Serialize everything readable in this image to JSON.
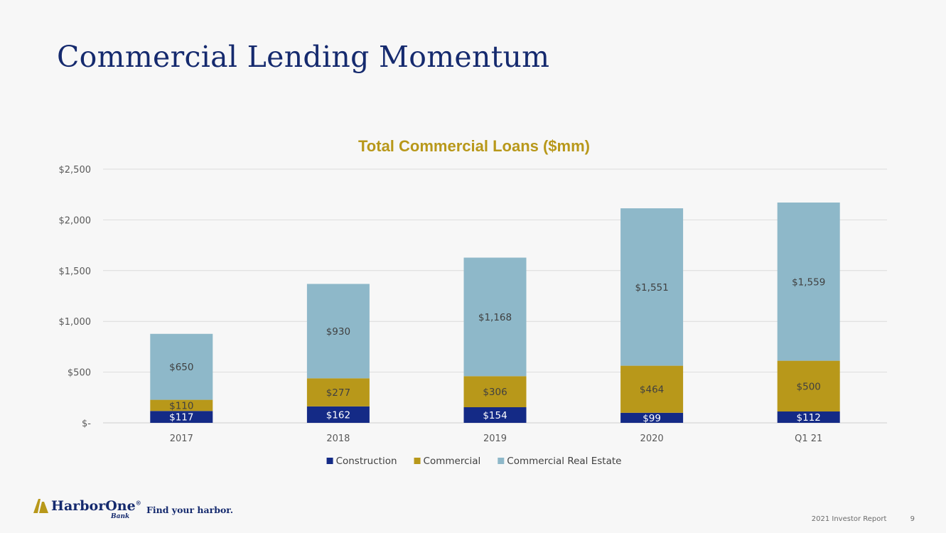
{
  "slide": {
    "title": "Commercial Lending Momentum"
  },
  "colors": {
    "construction": "#142a86",
    "commercial": "#b8981a",
    "commercial_real_estate": "#8eb8c9",
    "title_navy": "#152a6e",
    "chart_title_gold": "#b8981a"
  },
  "chart_data": {
    "type": "bar",
    "stacked": true,
    "title": "Total Commercial Loans ($mm)",
    "categories": [
      "2017",
      "2018",
      "2019",
      "2020",
      "Q1 21"
    ],
    "series": [
      {
        "name": "Construction",
        "values": [
          117,
          162,
          154,
          99,
          112
        ],
        "labels": [
          "$117",
          "$162",
          "$154",
          "$99",
          "$112"
        ]
      },
      {
        "name": "Commercial",
        "values": [
          110,
          277,
          306,
          464,
          500
        ],
        "labels": [
          "$110",
          "$277",
          "$306",
          "$464",
          "$500"
        ]
      },
      {
        "name": "Commercial Real Estate",
        "values": [
          650,
          930,
          1168,
          1551,
          1559
        ],
        "labels": [
          "$650",
          "$930",
          "$1,168",
          "$1,551",
          "$1,559"
        ]
      }
    ],
    "ylim": [
      0,
      2500
    ],
    "yticks": [
      0,
      500,
      1000,
      1500,
      2000,
      2500
    ],
    "ytick_labels": [
      "$-",
      "$500",
      "$1,000",
      "$1,500",
      "$2,000",
      "$2,500"
    ],
    "grid": true,
    "legend_position": "bottom"
  },
  "logo": {
    "name": "HarborOne",
    "registered": "®",
    "sub": "Bank",
    "tagline": "Find your harbor."
  },
  "footer": {
    "report": "2021 Investor Report",
    "page": "9"
  }
}
